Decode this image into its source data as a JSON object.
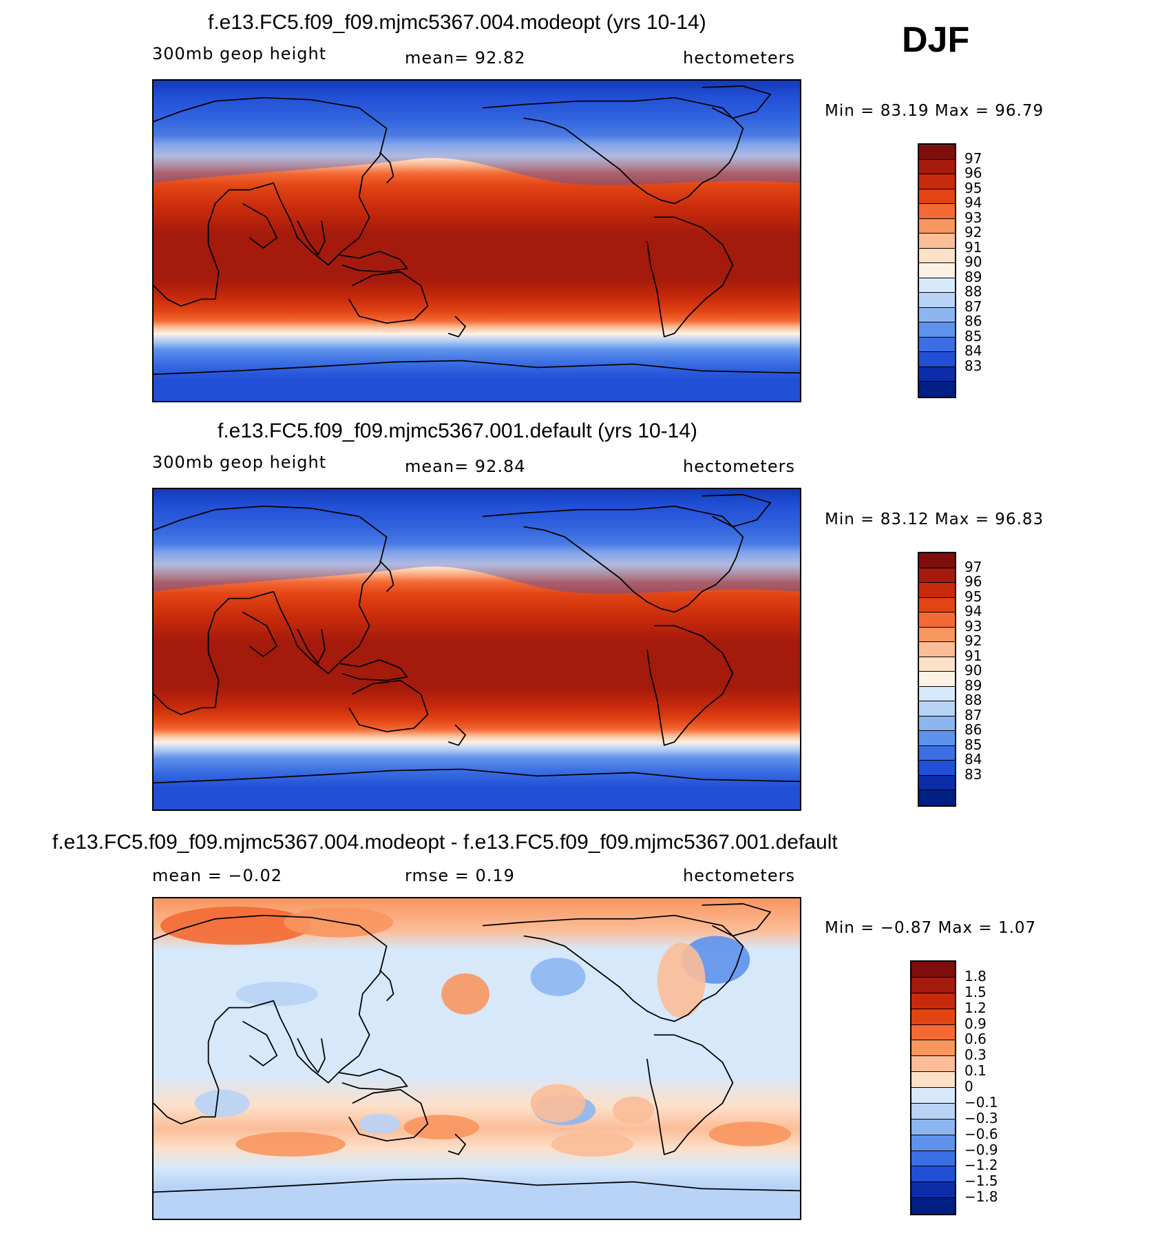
{
  "season": "DJF",
  "panels": [
    {
      "title": "f.e13.FC5.f09_f09.mjmc5367.004.modeopt (yrs 10-14)",
      "left_label": "300mb geop height",
      "center_label": "mean=   92.82",
      "units": "hectometers",
      "minmax": "Min =   83.19 Max =   96.79",
      "map_type": "absolute"
    },
    {
      "title": "f.e13.FC5.f09_f09.mjmc5367.001.default (yrs 10-14)",
      "left_label": "300mb geop height",
      "center_label": "mean=   92.84",
      "units": "hectometers",
      "minmax": "Min =   83.12 Max =   96.83",
      "map_type": "absolute"
    },
    {
      "title": "f.e13.FC5.f09_f09.mjmc5367.004.modeopt - f.e13.FC5.f09_f09.mjmc5367.001.default",
      "left_label": "mean =   −0.02",
      "center_label": "rmse =    0.19",
      "units": "hectometers",
      "minmax": "Min =  −0.87 Max =    1.07",
      "map_type": "difference"
    }
  ],
  "colorbars": {
    "absolute": {
      "labels": [
        "97",
        "96",
        "95",
        "94",
        "93",
        "92",
        "91",
        "90",
        "89",
        "88",
        "87",
        "86",
        "85",
        "84",
        "83"
      ],
      "colors": [
        "#7e0e0b",
        "#a41a0c",
        "#c82b0b",
        "#e24414",
        "#f36a35",
        "#f8965f",
        "#fbbd98",
        "#fde0c8",
        "#fdf1e4",
        "#d6e8fa",
        "#b8d3f6",
        "#8db6f1",
        "#5f92eb",
        "#3b6fe3",
        "#2150d6",
        "#0b2ea8",
        "#001f82"
      ]
    },
    "difference": {
      "labels": [
        "1.8",
        "1.5",
        "1.2",
        "0.9",
        "0.6",
        "0.3",
        "0.1",
        "0",
        "−0.1",
        "−0.3",
        "−0.6",
        "−0.9",
        "−1.2",
        "−1.5",
        "−1.8"
      ],
      "colors": [
        "#7e0e0b",
        "#a41a0c",
        "#c82b0b",
        "#e24414",
        "#f36a35",
        "#f8965f",
        "#fbbd98",
        "#fde0c8",
        "#d6e8fa",
        "#b8d3f6",
        "#8db6f1",
        "#5f92eb",
        "#3b6fe3",
        "#2150d6",
        "#0b2ea8",
        "#001f82"
      ]
    }
  }
}
